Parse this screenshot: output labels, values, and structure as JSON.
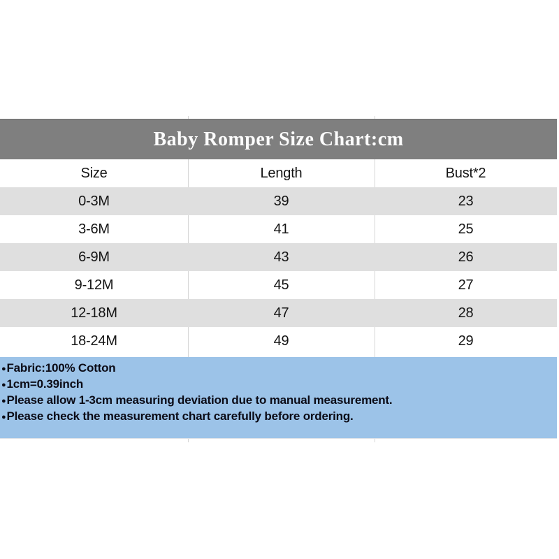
{
  "icons": {
    "bullet": "●"
  },
  "colors": {
    "title_band_bg": "#7f7f7f",
    "title_text": "#fcfcfc",
    "row_shade_bg": "#dfdfdf",
    "notes_panel_bg": "#9cc3e8",
    "grid_line": "#d6d6d6",
    "table_text": "#141414",
    "notes_text": "#0b0b16"
  },
  "chart_data": {
    "type": "table",
    "title": "Baby Romper Size Chart:cm",
    "units": "cm",
    "columns": [
      "Size",
      "Length",
      "Bust*2"
    ],
    "rows": [
      [
        "0-3M",
        "39",
        "23"
      ],
      [
        "3-6M",
        "41",
        "25"
      ],
      [
        "6-9M",
        "43",
        "26"
      ],
      [
        "9-12M",
        "45",
        "27"
      ],
      [
        "12-18M",
        "47",
        "28"
      ],
      [
        "18-24M",
        "49",
        "29"
      ]
    ],
    "notes": [
      "Fabric:100% Cotton",
      "1cm=0.39inch",
      "Please allow 1-3cm measuring deviation due to manual measurement.",
      "Please check the measurement chart carefully before ordering."
    ]
  }
}
